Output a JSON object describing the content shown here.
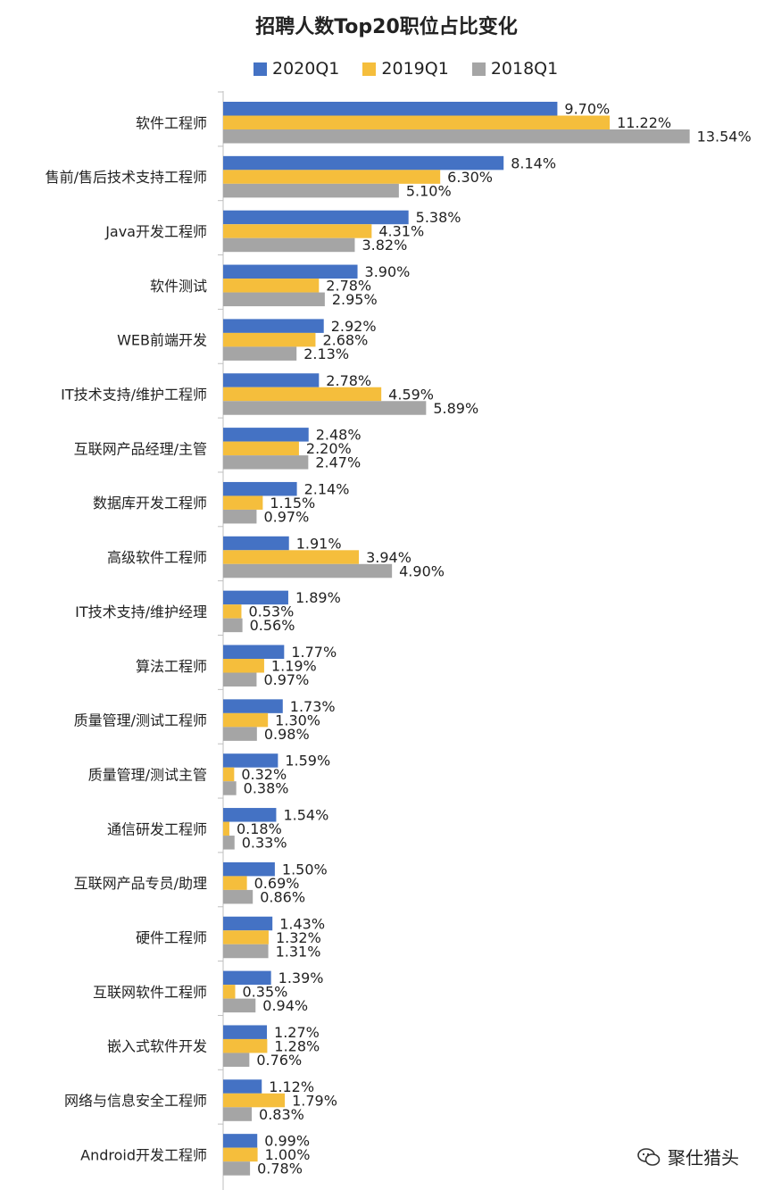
{
  "chart_data": {
    "type": "bar",
    "orientation": "horizontal",
    "title": "招聘人数Top20职位占比变化",
    "categories": [
      "软件工程师",
      "售前/售后技术支持工程师",
      "Java开发工程师",
      "软件测试",
      "WEB前端开发",
      "IT技术支持/维护工程师",
      "互联网产品经理/主管",
      "数据库开发工程师",
      "高级软件工程师",
      "IT技术支持/维护经理",
      "算法工程师",
      "质量管理/测试工程师",
      "质量管理/测试主管",
      "通信研发工程师",
      "互联网产品专员/助理",
      "硬件工程师",
      "互联网软件工程师",
      "嵌入式软件开发",
      "网络与信息安全工程师",
      "Android开发工程师"
    ],
    "series": [
      {
        "name": "2020Q1",
        "color": "#4472C4",
        "values": [
          9.7,
          8.14,
          5.38,
          3.9,
          2.92,
          2.78,
          2.48,
          2.14,
          1.91,
          1.89,
          1.77,
          1.73,
          1.59,
          1.54,
          1.5,
          1.43,
          1.39,
          1.27,
          1.12,
          0.99
        ],
        "labels": [
          "9.70%",
          "8.14%",
          "5.38%",
          "3.90%",
          "2.92%",
          "2.78%",
          "2.48%",
          "2.14%",
          "1.91%",
          "1.89%",
          "1.77%",
          "1.73%",
          "1.59%",
          "1.54%",
          "1.50%",
          "1.43%",
          "1.39%",
          "1.27%",
          "1.12%",
          "0.99%"
        ]
      },
      {
        "name": "2019Q1",
        "color": "#F5BE3C",
        "values": [
          11.22,
          6.3,
          4.31,
          2.78,
          2.68,
          4.59,
          2.2,
          1.15,
          3.94,
          0.53,
          1.19,
          1.3,
          0.32,
          0.18,
          0.69,
          1.32,
          0.35,
          1.28,
          1.79,
          1.0
        ],
        "labels": [
          "11.22%",
          "6.30%",
          "4.31%",
          "2.78%",
          "2.68%",
          "4.59%",
          "2.20%",
          "1.15%",
          "3.94%",
          "0.53%",
          "1.19%",
          "1.30%",
          "0.32%",
          "0.18%",
          "0.69%",
          "1.32%",
          "0.35%",
          "1.28%",
          "1.79%",
          "1.00%"
        ]
      },
      {
        "name": "2018Q1",
        "color": "#A5A5A5",
        "values": [
          13.54,
          5.1,
          3.82,
          2.95,
          2.13,
          5.89,
          2.47,
          0.97,
          4.9,
          0.56,
          0.97,
          0.98,
          0.38,
          0.33,
          0.86,
          1.31,
          0.94,
          0.76,
          0.83,
          0.78
        ],
        "labels": [
          "13.54%",
          "5.10%",
          "3.82%",
          "2.95%",
          "2.13%",
          "5.89%",
          "2.47%",
          "0.97%",
          "4.90%",
          "0.56%",
          "0.97%",
          "0.98%",
          "0.38%",
          "0.33%",
          "0.86%",
          "1.31%",
          "0.94%",
          "0.76%",
          "0.83%",
          "0.78%"
        ]
      }
    ],
    "legend_position": "top",
    "grid": false
  },
  "watermark": {
    "text": "聚仕猎头",
    "icon": "wechat-icon"
  }
}
